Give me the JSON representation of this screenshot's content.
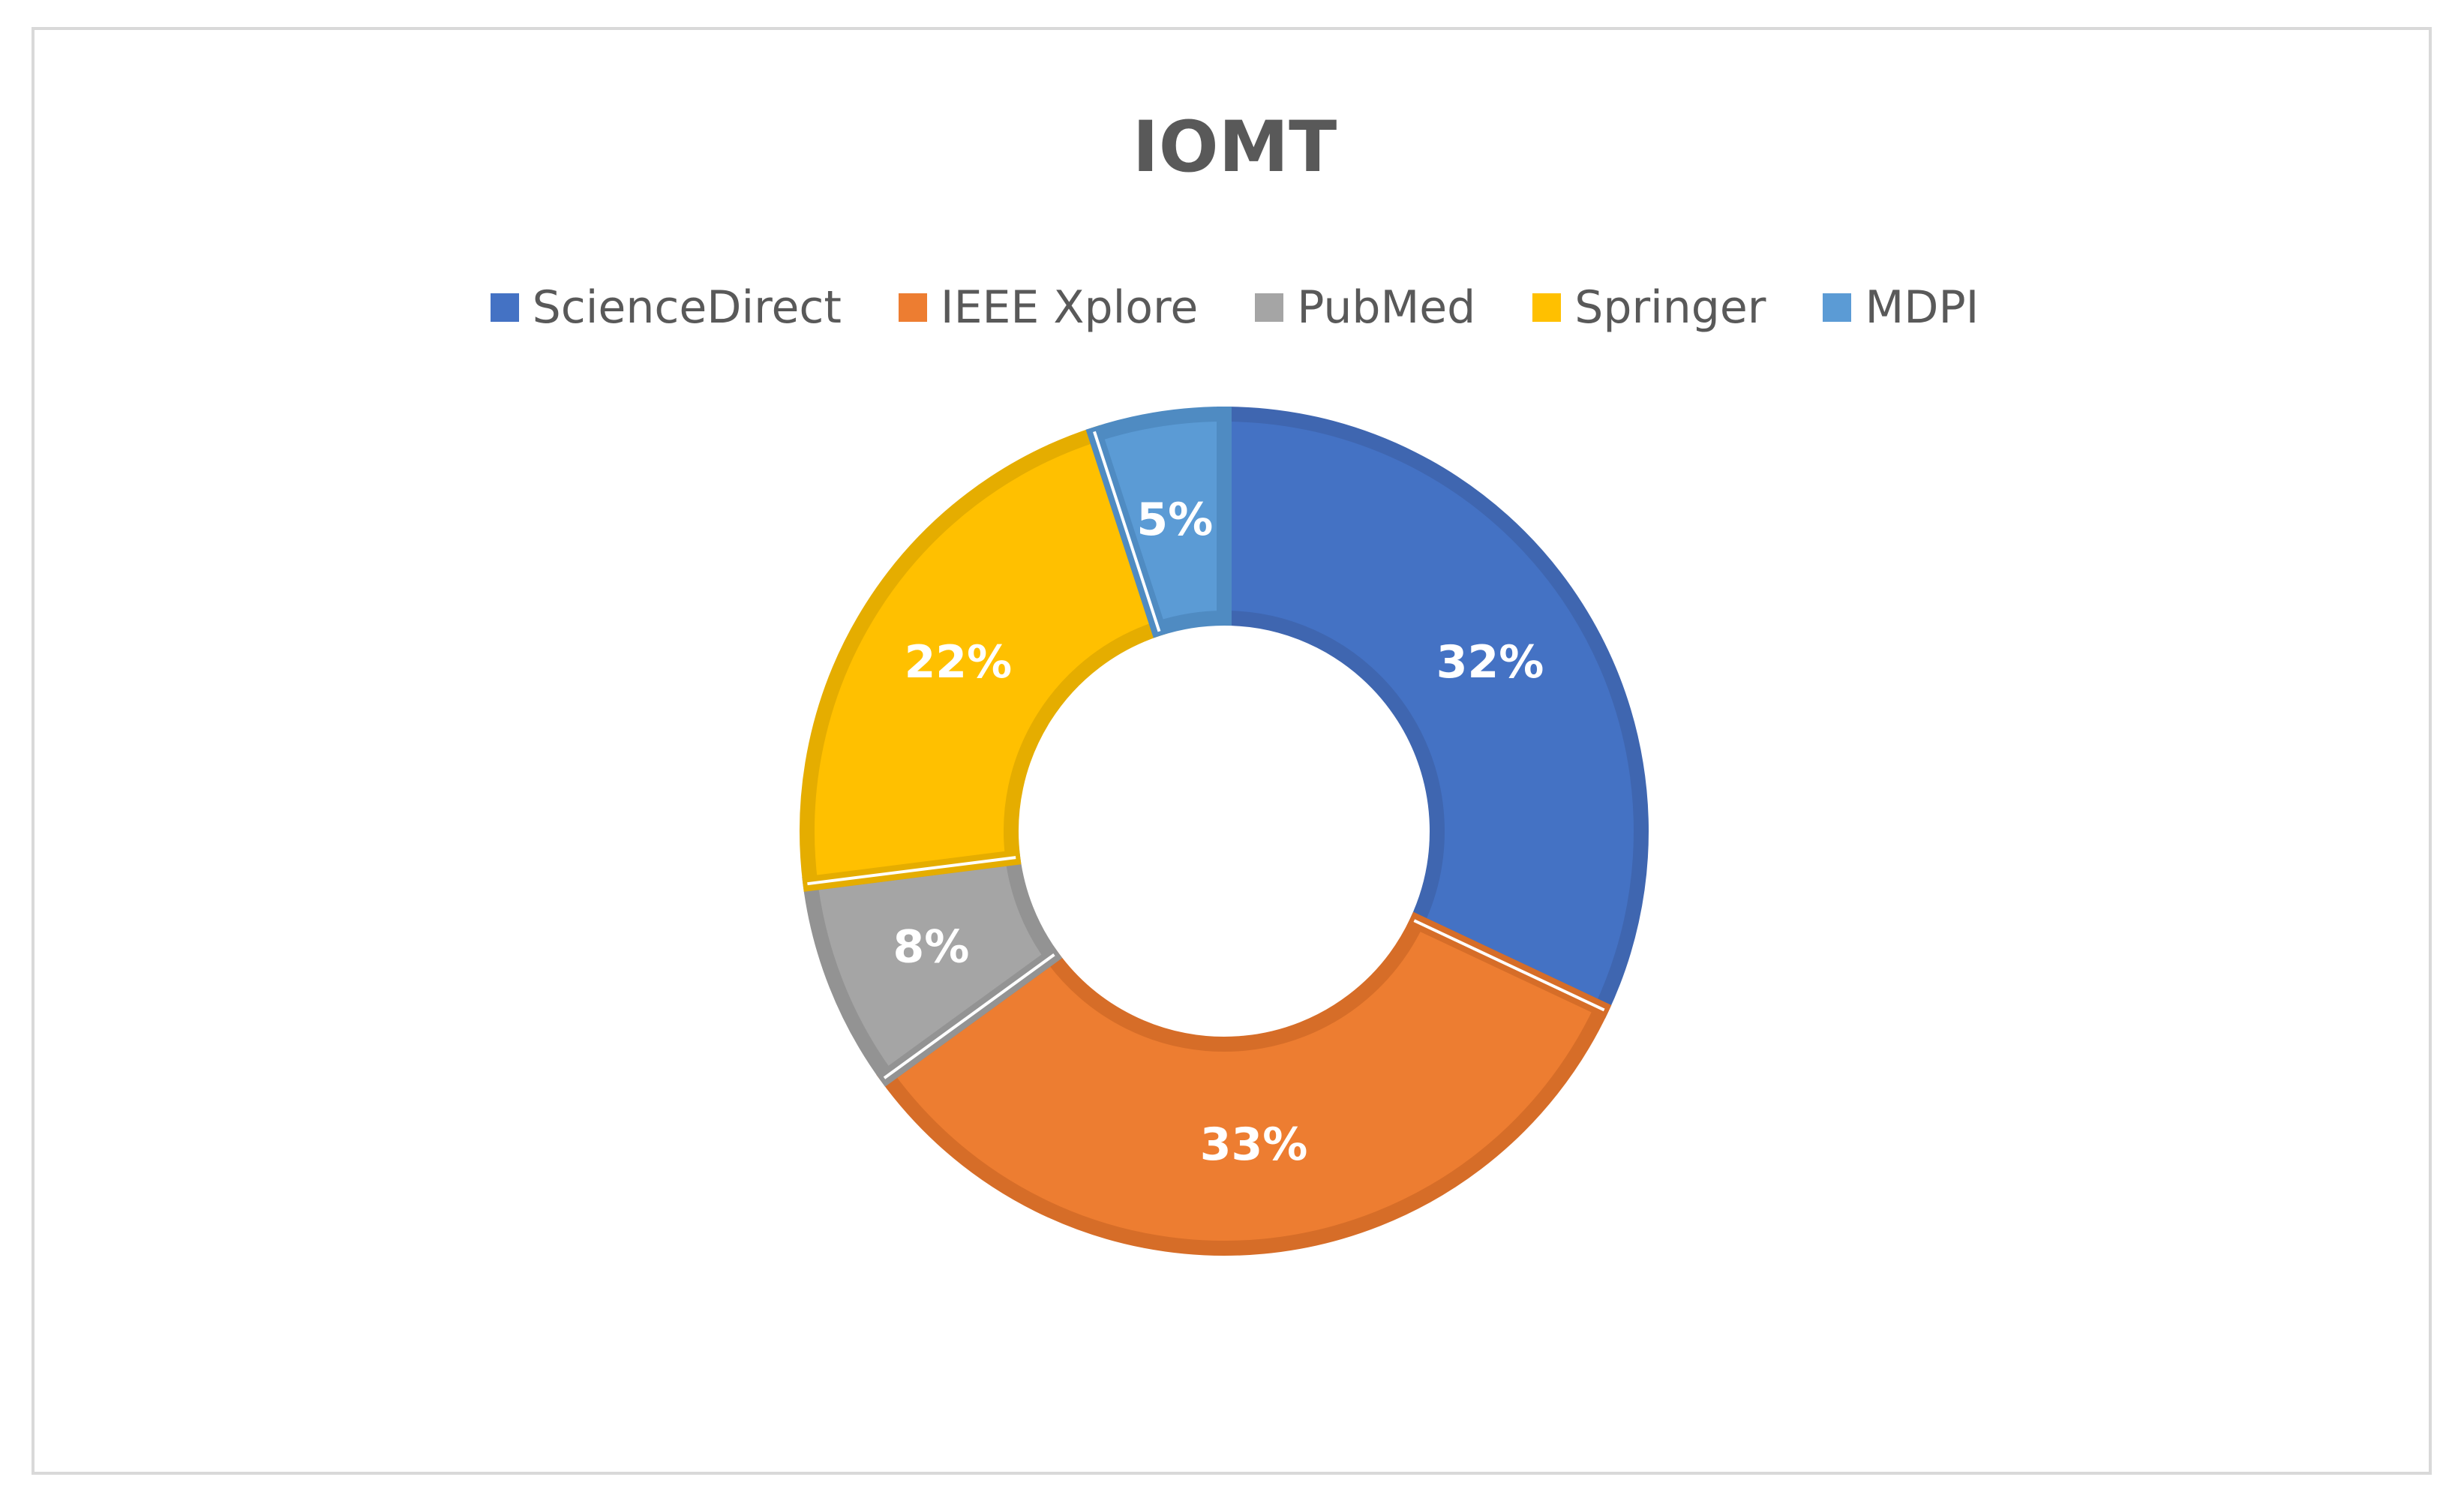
{
  "chart_data": {
    "type": "pie",
    "title": "IOMT",
    "donut": true,
    "legend_position": "top",
    "categories": [
      "ScienceDirect",
      "IEEE Xplore",
      "PubMed",
      "Springer",
      "MDPI"
    ],
    "values": [
      32,
      33,
      8,
      22,
      5
    ],
    "labels": [
      "32%",
      "33%",
      "8%",
      "22%",
      "5%"
    ],
    "colors": [
      "#4472C4",
      "#ED7D31",
      "#A5A5A5",
      "#FFC000",
      "#5B9BD5"
    ],
    "border_colors": [
      "#3F66B0",
      "#D66D28",
      "#939393",
      "#E5AD00",
      "#4F8BC2"
    ]
  }
}
